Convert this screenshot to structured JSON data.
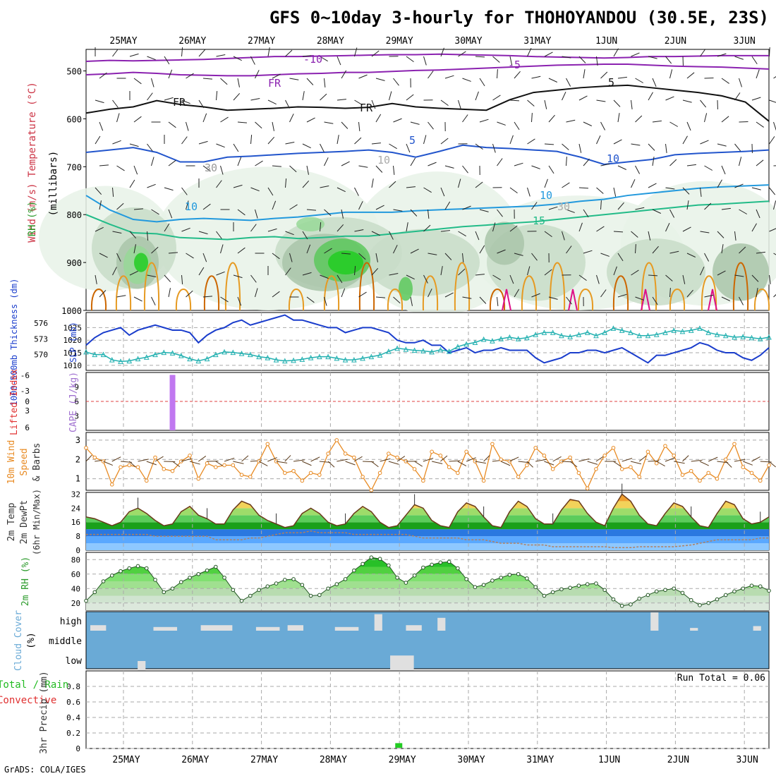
{
  "header": {
    "title": "GFS 0~10day 3-hourly for THOHOYANDOU (30.5E, 23S)",
    "credit": "GrADS: COLA/IGES"
  },
  "colors": {
    "rh1": "#e8f2e8",
    "rh2": "#c8dcc8",
    "rh3": "#a9c4a9",
    "rh4": "#98d898",
    "rh5": "#5cc85c",
    "rh6": "#22cc22",
    "purple": "#8b22b0",
    "blue": "#2255cc",
    "lightblue": "#2299dd",
    "teal": "#22bb88",
    "orange": "#e69a22",
    "darkorange": "#cc6600",
    "magenta": "#dd1188",
    "slp": "#1a3dcc",
    "thick": "#22b0b0",
    "cape": "#c078f0",
    "wind10": "#e88a22",
    "cloud": "#6aaad6"
  },
  "chart_data": [
    {
      "id": "profile",
      "type": "contour",
      "title": "Wind (m/s) / Temperature (°C) / RH (%)",
      "ylabel": "millibars",
      "ylabel_parts": [
        "Wind (m/s)",
        "Temperature (°C)",
        "RH (%)"
      ],
      "ylabel_vertical": "(millibars)",
      "yticks": [
        500,
        600,
        700,
        800,
        900,
        1000
      ],
      "x_dates": [
        "25MAY",
        "26MAY",
        "27MAY",
        "28MAY",
        "29MAY",
        "30MAY",
        "31MAY",
        "1JUN",
        "2JUN",
        "3JUN"
      ],
      "contour_labels": [
        "-10",
        "-5",
        "FR",
        "FR",
        "FR",
        "5",
        "5",
        "10",
        "10",
        "10",
        "15",
        "30",
        "30",
        "10"
      ],
      "isotherms": [
        {
          "label": "-10",
          "p": [
            480,
            478,
            479,
            478,
            477,
            476,
            474,
            472,
            470,
            470,
            469,
            468,
            467,
            466,
            466,
            465,
            466,
            467,
            468,
            470,
            471,
            472,
            473,
            472,
            470,
            470,
            469,
            468,
            468,
            468
          ]
        },
        {
          "label": "-5",
          "p": [
            508,
            506,
            503,
            505,
            508,
            509,
            510,
            510,
            508,
            506,
            505,
            503,
            503,
            501,
            499,
            498,
            496,
            494,
            492,
            490,
            488,
            487,
            486,
            486,
            488,
            490,
            491,
            492,
            494,
            496
          ]
        },
        {
          "label": "FR",
          "p": [
            588,
            580,
            575,
            562,
            570,
            575,
            582,
            580,
            578,
            575,
            576,
            578,
            576,
            568,
            575,
            578,
            580,
            582,
            560,
            545,
            540,
            535,
            532,
            530,
            535,
            540,
            545,
            552,
            565,
            605
          ]
        },
        {
          "label": "5",
          "p": [
            670,
            665,
            660,
            670,
            690,
            690,
            680,
            678,
            675,
            672,
            670,
            668,
            665,
            670,
            680,
            668,
            655,
            660,
            662,
            665,
            668,
            680,
            695,
            690,
            685,
            675,
            672,
            670,
            668,
            665
          ]
        },
        {
          "label": "10",
          "p": [
            760,
            790,
            810,
            815,
            810,
            808,
            810,
            812,
            808,
            805,
            800,
            795,
            795,
            795,
            792,
            790,
            788,
            786,
            784,
            782,
            778,
            772,
            768,
            760,
            755,
            750,
            745,
            742,
            740,
            738
          ]
        },
        {
          "label": "15",
          "p": [
            800,
            820,
            838,
            840,
            848,
            850,
            852,
            848,
            846,
            850,
            848,
            845,
            845,
            840,
            835,
            830,
            825,
            822,
            818,
            815,
            810,
            805,
            800,
            795,
            790,
            785,
            780,
            778,
            775,
            772
          ]
        }
      ]
    },
    {
      "id": "slp_thickness",
      "type": "line",
      "ylabel_left": "1000-500mb Thickness (dm)",
      "ylabel_right": "SLP (mb)",
      "yticks_left": [
        570,
        573,
        576
      ],
      "yticks_right": [
        1010,
        1015,
        1020,
        1025
      ],
      "series": [
        {
          "name": "SLP (mb)",
          "ylim": [
            1010,
            1030
          ],
          "values": [
            1018,
            1021,
            1023,
            1024,
            1025,
            1022,
            1024,
            1025,
            1026,
            1025,
            1024,
            1024,
            1023,
            1019,
            1022,
            1024,
            1025,
            1027,
            1028,
            1026,
            1027,
            1028,
            1029,
            1030,
            1028,
            1028,
            1027,
            1026,
            1025,
            1025,
            1023,
            1024,
            1025,
            1025,
            1024,
            1023,
            1020,
            1019,
            1019,
            1020,
            1018,
            1018,
            1015,
            1016,
            1017,
            1015,
            1016,
            1016,
            1017,
            1016,
            1016,
            1016,
            1013,
            1011,
            1012,
            1013,
            1015,
            1015,
            1016,
            1016,
            1015,
            1016,
            1017,
            1015,
            1013,
            1011,
            1014,
            1014,
            1015,
            1016,
            1017,
            1019,
            1018,
            1016,
            1015,
            1015,
            1013,
            1012,
            1014,
            1017
          ]
        },
        {
          "name": "Thickness (dm)",
          "ylim": [
            567,
            578
          ],
          "values": [
            570.5,
            570,
            570,
            569,
            568.7,
            568.8,
            569.2,
            569.5,
            570,
            570.4,
            570.3,
            569.8,
            569.2,
            568.8,
            569.2,
            570,
            570.5,
            570.4,
            570.2,
            570,
            569.6,
            569.4,
            569,
            568.8,
            568.9,
            569.1,
            569.4,
            569.6,
            569.6,
            569.3,
            569,
            569,
            569.3,
            569.6,
            569.9,
            570.6,
            571.2,
            571.0,
            570.8,
            570.7,
            570.5,
            570.9,
            570.6,
            571.5,
            572,
            572.3,
            572.9,
            572.6,
            573.0,
            573.3,
            573,
            573.2,
            573.8,
            574.2,
            574.2,
            573.6,
            573.4,
            573.8,
            574.2,
            573.6,
            574.2,
            575,
            574.6,
            574.2,
            573.6,
            573.6,
            573.8,
            574.2,
            574.6,
            574.4,
            574.6,
            575,
            574.2,
            573.8,
            573.6,
            573.3,
            573.4,
            573.2,
            573.0,
            573.3
          ]
        }
      ]
    },
    {
      "id": "cape_li",
      "type": "bar",
      "ylabel_left": "Lifted Index",
      "ylabel_right": "CAPE (J/kg)",
      "yticks_left": [
        "-6",
        "0",
        "6"
      ],
      "yticks_left_minor": [
        "-3",
        "3"
      ],
      "yticks_right": [
        "3",
        "6",
        "9"
      ],
      "ylim": [
        0,
        12
      ],
      "values": [
        {
          "t": 10,
          "cape": 11.5
        }
      ]
    },
    {
      "id": "wind10m",
      "type": "line",
      "ylabel": "10m Wind Speed & Barbs (m/s)",
      "ylabel_parts": [
        "10m Wind",
        "Speed",
        "& Barbs"
      ],
      "yticks": [
        1,
        2,
        3
      ],
      "ylim": [
        0.4,
        3.4
      ],
      "values": [
        2.6,
        2.1,
        1.9,
        0.7,
        1.6,
        1.7,
        1.6,
        0.9,
        2.1,
        1.5,
        1.4,
        1.9,
        2.2,
        1.0,
        1.8,
        1.6,
        1.7,
        1.7,
        1.2,
        1.1,
        1.9,
        2.8,
        1.9,
        1.3,
        1.4,
        0.9,
        1.3,
        1.2,
        2.3,
        3.0,
        2.3,
        2.1,
        1.1,
        0.4,
        1.3,
        2.3,
        2.1,
        1.9,
        1.5,
        0.9,
        2.4,
        2.2,
        1.6,
        1.3,
        2.4,
        1.9,
        0.9,
        2.8,
        2.0,
        1.9,
        1.1,
        1.7,
        2.6,
        2.2,
        1.5,
        1.9,
        2.1,
        1.3,
        0.5,
        1.5,
        2.2,
        2.6,
        1.5,
        1.6,
        1.1,
        2.4,
        1.8,
        2.7,
        2.2,
        1.2,
        1.4,
        0.9,
        1.3,
        1.0,
        2.0,
        2.8,
        1.6,
        1.3,
        0.9,
        1.7
      ]
    },
    {
      "id": "temp2m",
      "type": "area",
      "ylabel_parts": [
        "2m Temp",
        "2m DewPt",
        "(6hr Min/Max)"
      ],
      "yticks": [
        0,
        8,
        16,
        24,
        32
      ],
      "ylim": [
        0,
        33
      ],
      "temp": [
        19,
        18,
        16,
        14,
        16,
        22,
        24,
        21,
        17,
        14,
        15,
        22,
        25,
        20,
        18,
        15,
        15,
        23,
        28,
        26,
        20,
        17,
        15,
        13,
        14,
        21,
        24,
        21,
        16,
        14,
        15,
        21,
        25,
        22,
        16,
        13,
        14,
        20,
        26,
        24,
        17,
        14,
        13,
        22,
        27,
        25,
        19,
        14,
        13,
        22,
        28,
        25,
        18,
        15,
        15,
        23,
        29,
        28,
        21,
        16,
        14,
        24,
        32,
        28,
        20,
        15,
        14,
        21,
        27,
        25,
        19,
        14,
        13,
        21,
        28,
        26,
        18,
        15,
        16,
        19
      ],
      "dew": [
        9,
        9,
        9,
        9,
        9,
        9,
        9,
        9,
        8,
        8,
        8,
        8,
        8,
        8,
        8,
        6,
        6,
        6,
        6,
        7,
        7,
        8,
        9,
        10,
        10,
        10,
        11,
        10,
        10,
        10,
        10,
        9,
        9,
        9,
        9,
        9,
        9,
        9,
        8,
        7,
        7,
        7,
        7,
        7,
        6,
        6,
        6,
        5,
        4,
        4,
        4,
        3,
        3,
        3,
        2,
        2,
        2,
        2,
        2,
        2,
        2,
        1.5,
        1.5,
        1.5,
        2,
        2,
        2,
        2,
        2,
        2.5,
        3,
        4,
        5,
        6,
        6,
        6,
        6,
        6,
        7,
        7
      ]
    },
    {
      "id": "rh2m",
      "type": "area",
      "ylabel": "2m RH (%)",
      "yticks": [
        20,
        40,
        60,
        80
      ],
      "ylim": [
        10,
        90
      ],
      "values": [
        23,
        35,
        50,
        58,
        64,
        68,
        71,
        68,
        52,
        35,
        40,
        49,
        55,
        60,
        65,
        70,
        55,
        38,
        23,
        30,
        38,
        43,
        47,
        52,
        53,
        45,
        30,
        31,
        40,
        46,
        53,
        65,
        74,
        83,
        81,
        72,
        55,
        48,
        58,
        69,
        73,
        76,
        77,
        68,
        53,
        42,
        45,
        51,
        55,
        59,
        60,
        54,
        42,
        30,
        35,
        39,
        41,
        44,
        46,
        47,
        38,
        25,
        16,
        18,
        26,
        31,
        36,
        38,
        40,
        34,
        24,
        17,
        20,
        25,
        31,
        36,
        40,
        44,
        43,
        37
      ]
    },
    {
      "id": "cloud",
      "type": "bar",
      "ylabel": "Cloud Cover (%)",
      "ylabel_parts": [
        "Cloud Cover",
        "(%)"
      ],
      "levels": [
        "high",
        "middle",
        "low"
      ],
      "gaps": [
        {
          "level": "high",
          "t": 0,
          "w": 2,
          "frac": 0.3
        },
        {
          "level": "high",
          "t": 8,
          "w": 3,
          "frac": 0.2
        },
        {
          "level": "high",
          "t": 14,
          "w": 4,
          "frac": 0.3
        },
        {
          "level": "high",
          "t": 21,
          "w": 3,
          "frac": 0.2
        },
        {
          "level": "high",
          "t": 25,
          "w": 2,
          "frac": 0.3
        },
        {
          "level": "high",
          "t": 31,
          "w": 3,
          "frac": 0.2
        },
        {
          "level": "high",
          "t": 36,
          "w": 1,
          "frac": 0.9
        },
        {
          "level": "high",
          "t": 40,
          "w": 2,
          "frac": 0.3
        },
        {
          "level": "high",
          "t": 44,
          "w": 1,
          "frac": 0.7
        },
        {
          "level": "high",
          "t": 71,
          "w": 1,
          "frac": 1.0
        },
        {
          "level": "high",
          "t": 76,
          "w": 1,
          "frac": 0.15
        },
        {
          "level": "high",
          "t": 84,
          "w": 1,
          "frac": 0.25
        },
        {
          "level": "low",
          "t": 6,
          "w": 1,
          "frac": 0.5
        },
        {
          "level": "low",
          "t": 38,
          "w": 3,
          "frac": 0.8
        }
      ]
    },
    {
      "id": "precip",
      "type": "bar",
      "ylabel": "3hr Precip (mm)",
      "legend_left": "Total / Rain",
      "legend_left2": "Convective",
      "annotation": "Run Total = 0.06",
      "yticks": [
        0,
        0.2,
        0.4,
        0.6,
        0.8
      ],
      "ylim": [
        0,
        1
      ],
      "values": [
        {
          "t": 39,
          "total": 0.06
        }
      ]
    }
  ]
}
